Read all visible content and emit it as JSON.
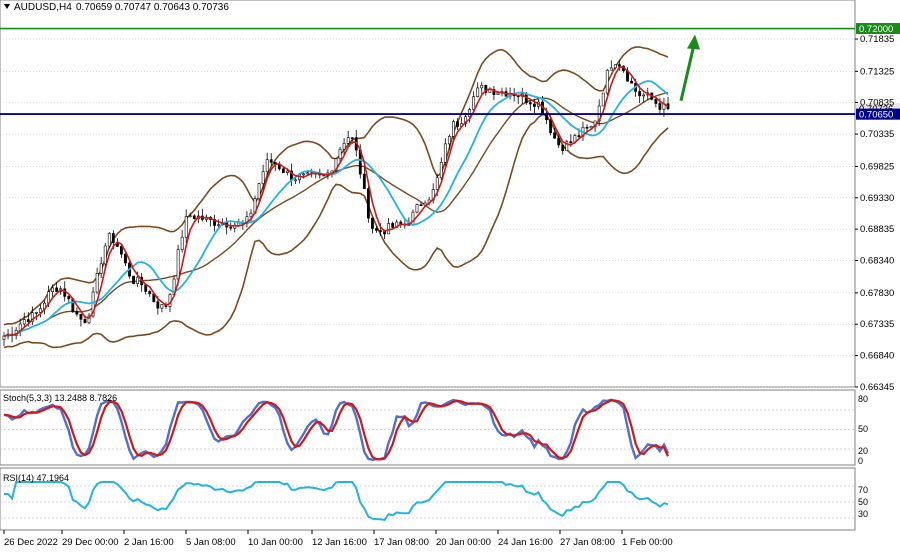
{
  "colors": {
    "background": "#ffffff",
    "grid": "#c8c8c8",
    "bullish_candle": "#ffffff",
    "bearish_candle": "#000000",
    "bollinger": "#7a4a1e",
    "ma_fast": "#d01818",
    "ma_slow": "#22b4e0",
    "target_line": "#1a8a1a",
    "current_level_line": "#00008c",
    "arrow": "#1a8a1a",
    "stoch_main": "#5070d0",
    "stoch_signal": "#d01818",
    "rsi_line": "#22b4e0"
  },
  "price_panel": {
    "symbol_label": "AUDUSD,H4",
    "ohlc_text": "0.70659 0.70747 0.70643 0.70736"
  },
  "stoch_panel": {
    "title": "Stoch(5,3,3) 13.2488 8.7826",
    "levels": [
      "80",
      "50",
      "20",
      "0"
    ]
  },
  "rsi_panel": {
    "title": "RSI(14) 47.1964",
    "levels": [
      "70",
      "50",
      "30"
    ]
  },
  "chart_data": {
    "type": "candlestick",
    "symbol": "AUDUSD",
    "timeframe": "H4",
    "ylim": [
      0.66345,
      0.7245
    ],
    "y_ticks": [
      "0.71835",
      "0.71325",
      "0.70835",
      "0.70335",
      "0.69825",
      "0.69330",
      "0.68835",
      "0.68340",
      "0.67830",
      "0.67335",
      "0.66840",
      "0.66345"
    ],
    "x_ticks": [
      "26 Dec 2022",
      "29 Dec 00:00",
      "2 Jan 16:00",
      "5 Jan 08:00",
      "10 Jan 00:00",
      "12 Jan 16:00",
      "17 Jan 08:00",
      "20 Jan 00:00",
      "24 Jan 16:00",
      "27 Jan 08:00",
      "1 Feb 00:00"
    ],
    "horizontal_lines": [
      {
        "label": "0.72000",
        "price": 0.72
      },
      {
        "label": "0.70650",
        "price": 0.7065
      }
    ],
    "close_label": "0.70736",
    "close_price": 0.70736,
    "anchors": [
      {
        "x": "26 Dec 2022",
        "close": 0.6715
      },
      {
        "x": "29 Dec 00:00",
        "close": 0.6745
      },
      {
        "x": "2 Jan 16:00",
        "close": 0.6792
      },
      {
        "x": "3 Jan",
        "close": 0.674
      },
      {
        "x": "4 Jan",
        "close": 0.687
      },
      {
        "x": "5 Jan 08:00",
        "close": 0.68
      },
      {
        "x": "6 Jan",
        "close": 0.676
      },
      {
        "x": "9 Jan",
        "close": 0.6905
      },
      {
        "x": "10 Jan 00:00",
        "close": 0.6895
      },
      {
        "x": "11 Jan",
        "close": 0.689
      },
      {
        "x": "12 Jan 16:00",
        "close": 0.699
      },
      {
        "x": "13 Jan",
        "close": 0.6965
      },
      {
        "x": "16 Jan",
        "close": 0.6965
      },
      {
        "x": "17 Jan 08:00",
        "close": 0.703
      },
      {
        "x": "18 Jan",
        "close": 0.688
      },
      {
        "x": "19 Jan",
        "close": 0.689
      },
      {
        "x": "20 Jan 00:00",
        "close": 0.6935
      },
      {
        "x": "23 Jan",
        "close": 0.705
      },
      {
        "x": "24 Jan 16:00",
        "close": 0.7105
      },
      {
        "x": "25 Jan",
        "close": 0.71
      },
      {
        "x": "26 Jan",
        "close": 0.7085
      },
      {
        "x": "27 Jan 08:00",
        "close": 0.7015
      },
      {
        "x": "30 Jan",
        "close": 0.704
      },
      {
        "x": "31 Jan",
        "close": 0.715
      },
      {
        "x": "1 Feb 00:00",
        "close": 0.7095
      },
      {
        "x": "1 Feb",
        "close": 0.70736
      }
    ],
    "stochastic": {
      "main": 13.2488,
      "signal": 8.7826,
      "levels": [
        80,
        50,
        20
      ]
    },
    "rsi": {
      "value": 47.1964,
      "levels": [
        70,
        50,
        30
      ]
    }
  }
}
